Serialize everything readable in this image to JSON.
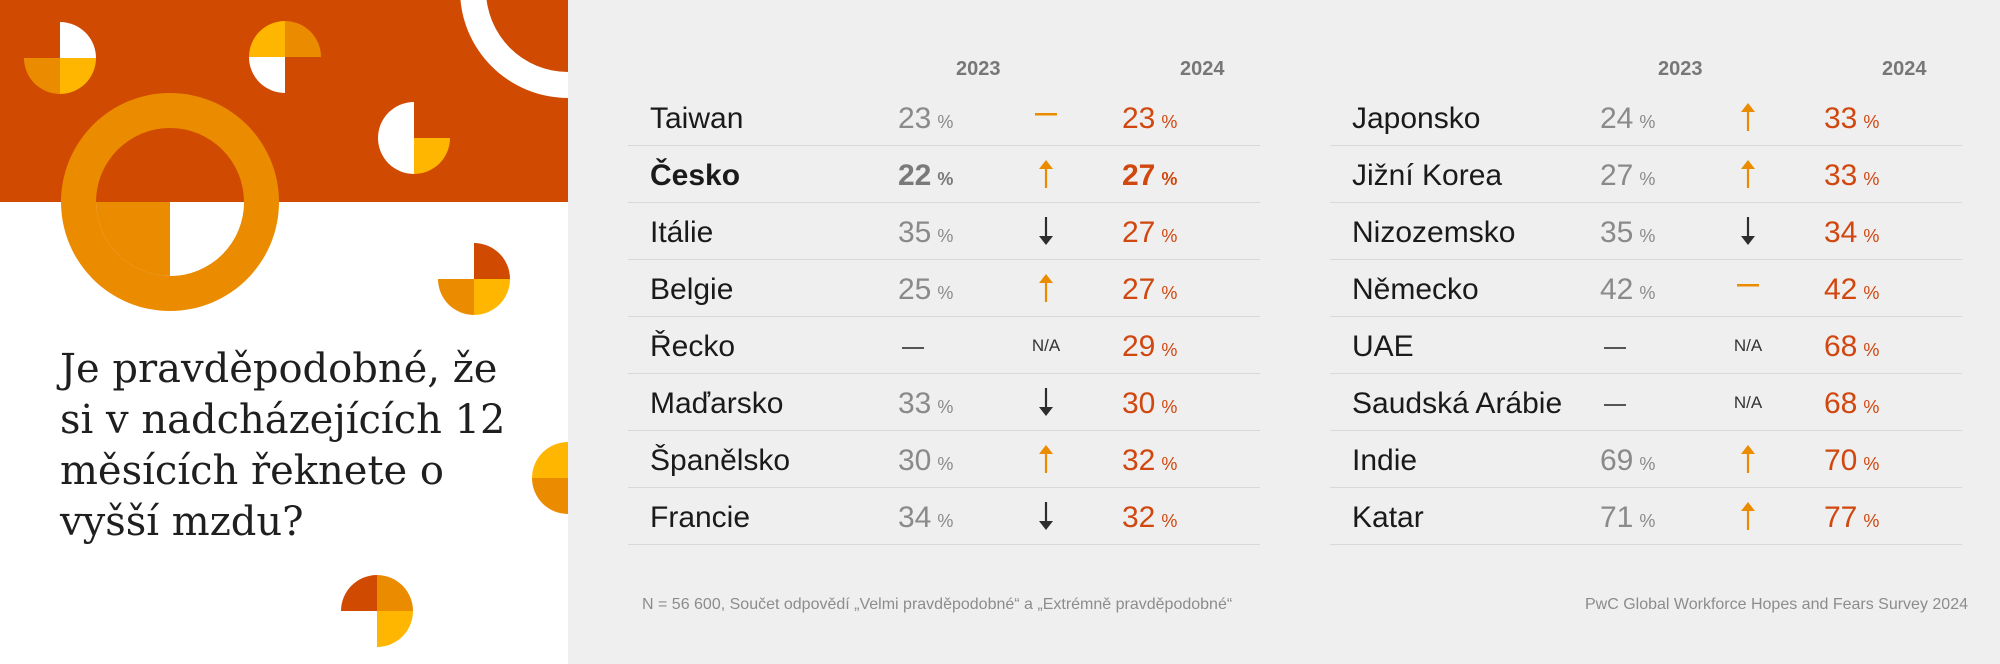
{
  "question": "Je pravděpodobné, že si v nadcházejících 12 měsících řeknete o vyšší mzdu?",
  "colors": {
    "accent": "#d04a02",
    "orange": "#eb8c00",
    "yellow": "#ffb600",
    "value_2024": "#d0470f",
    "value_2023": "#8a8a8a",
    "background_right": "#efefef"
  },
  "chart_data": {
    "type": "table",
    "columns": [
      "2023",
      "2024"
    ],
    "unit": "%",
    "tables": [
      {
        "rows": [
          {
            "country": "Taiwan",
            "v2023": "23",
            "trend": "same",
            "v2024": "23"
          },
          {
            "country": "Česko",
            "v2023": "22",
            "trend": "up",
            "v2024": "27",
            "highlight": true
          },
          {
            "country": "Itálie",
            "v2023": "35",
            "trend": "down",
            "v2024": "27"
          },
          {
            "country": "Belgie",
            "v2023": "25",
            "trend": "up",
            "v2024": "27"
          },
          {
            "country": "Řecko",
            "v2023": null,
            "trend": "na",
            "v2024": "29"
          },
          {
            "country": "Maďarsko",
            "v2023": "33",
            "trend": "down",
            "v2024": "30"
          },
          {
            "country": "Španělsko",
            "v2023": "30",
            "trend": "up",
            "v2024": "32"
          },
          {
            "country": "Francie",
            "v2023": "34",
            "trend": "down",
            "v2024": "32"
          }
        ]
      },
      {
        "rows": [
          {
            "country": "Japonsko",
            "v2023": "24",
            "trend": "up",
            "v2024": "33"
          },
          {
            "country": "Jižní Korea",
            "v2023": "27",
            "trend": "up",
            "v2024": "33"
          },
          {
            "country": "Nizozemsko",
            "v2023": "35",
            "trend": "down",
            "v2024": "34"
          },
          {
            "country": "Německo",
            "v2023": "42",
            "trend": "same",
            "v2024": "42"
          },
          {
            "country": "UAE",
            "v2023": null,
            "trend": "na",
            "v2024": "68"
          },
          {
            "country": "Saudská Arábie",
            "v2023": null,
            "trend": "na",
            "v2024": "68"
          },
          {
            "country": "Indie",
            "v2023": "69",
            "trend": "up",
            "v2024": "70"
          },
          {
            "country": "Katar",
            "v2023": "71",
            "trend": "up",
            "v2024": "77"
          }
        ]
      }
    ],
    "na_label": "N/A",
    "trend_colors": {
      "up": "#eb8c00",
      "down": "#2d2d2d",
      "same": "#eb8c00"
    }
  },
  "footnote": "N = 56 600, Součet odpovědí „Velmi pravděpodobné“ a „Extrémně pravděpodobné“",
  "source": "PwC Global Workforce Hopes and Fears Survey 2024"
}
